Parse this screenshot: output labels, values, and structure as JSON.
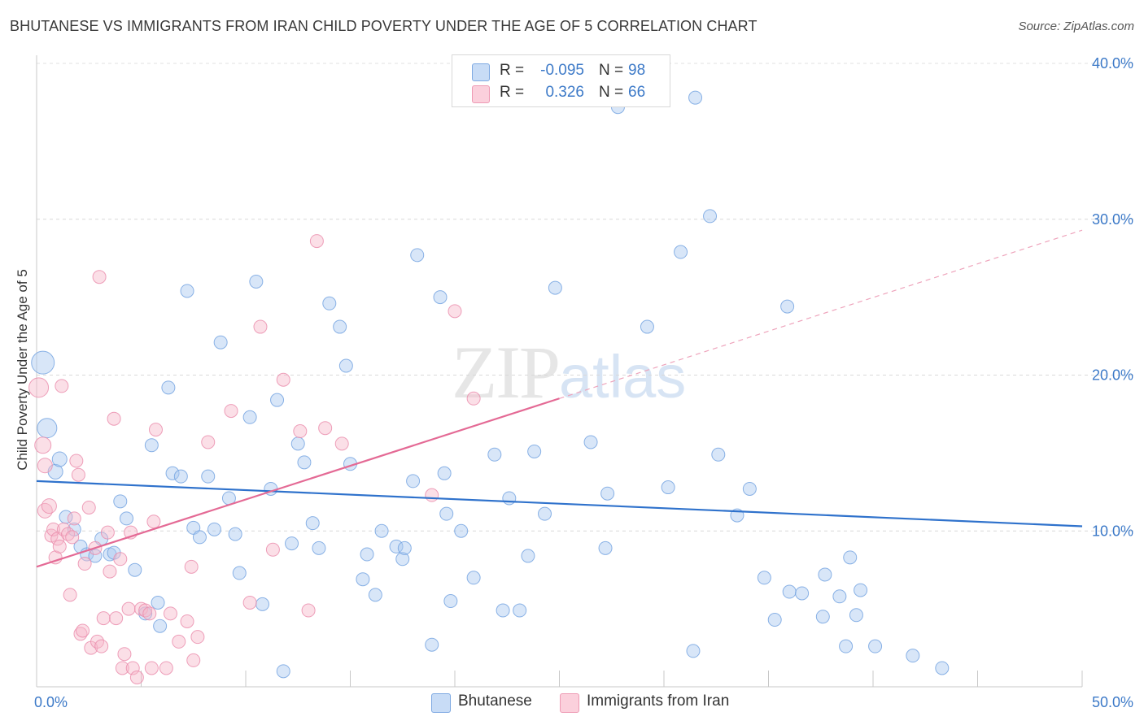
{
  "title": "BHUTANESE VS IMMIGRANTS FROM IRAN CHILD POVERTY UNDER THE AGE OF 5 CORRELATION CHART",
  "source": "Source: ZipAtlas.com",
  "watermark": {
    "zip": "ZIP",
    "atlas": "atlas"
  },
  "legend": {
    "rows": [
      {
        "r_label": "R =",
        "r_value": "-0.095",
        "n_label": "N =",
        "n_value": "98",
        "color": "#a9c8f0"
      },
      {
        "r_label": "R =",
        "r_value": "0.326",
        "n_label": "N =",
        "n_value": "66",
        "color": "#f6b7c9"
      }
    ]
  },
  "bottom_legend": [
    {
      "label": "Bhutanese",
      "color": "#a9c8f0"
    },
    {
      "label": "Immigrants from Iran",
      "color": "#f6b7c9"
    }
  ],
  "chart_data": {
    "type": "scatter",
    "title": "BHUTANESE VS IMMIGRANTS FROM IRAN CHILD POVERTY UNDER THE AGE OF 5 CORRELATION CHART",
    "xlabel": "",
    "ylabel": "Child Poverty Under the Age of 5",
    "xlim": [
      0,
      50
    ],
    "ylim": [
      0,
      40
    ],
    "x_tick_labels": [
      "0.0%",
      "50.0%"
    ],
    "y_ticks": [
      10,
      20,
      30,
      40
    ],
    "y_tick_labels": [
      "10.0%",
      "20.0%",
      "30.0%",
      "40.0%"
    ],
    "grid": true,
    "legend_position": "top-center",
    "series": [
      {
        "name": "Bhutanese",
        "color": "#6fa0e0",
        "fill": "#a9c8f0",
        "trend": {
          "x": [
            0,
            50
          ],
          "y": [
            13.2,
            10.3
          ],
          "style": "solid"
        },
        "points": [
          [
            0.3,
            20.8,
            14
          ],
          [
            0.5,
            16.6,
            12
          ],
          [
            0.9,
            13.8,
            9
          ],
          [
            1.1,
            14.6,
            9
          ],
          [
            1.4,
            10.9,
            8
          ],
          [
            1.8,
            10.1,
            8
          ],
          [
            2.1,
            9.0,
            8
          ],
          [
            2.4,
            8.5,
            8
          ],
          [
            2.8,
            8.4,
            8
          ],
          [
            3.1,
            9.5,
            8
          ],
          [
            3.5,
            8.5,
            8
          ],
          [
            3.7,
            8.6,
            8
          ],
          [
            4.0,
            11.9,
            8
          ],
          [
            4.3,
            10.8,
            8
          ],
          [
            4.7,
            7.5,
            8
          ],
          [
            5.2,
            4.7,
            8
          ],
          [
            5.5,
            15.5,
            8
          ],
          [
            5.8,
            5.4,
            8
          ],
          [
            5.9,
            3.9,
            8
          ],
          [
            6.3,
            19.2,
            8
          ],
          [
            6.5,
            13.7,
            8
          ],
          [
            6.9,
            13.5,
            8
          ],
          [
            7.2,
            25.4,
            8
          ],
          [
            7.5,
            10.2,
            8
          ],
          [
            7.8,
            9.6,
            8
          ],
          [
            8.2,
            13.5,
            8
          ],
          [
            8.5,
            10.1,
            8
          ],
          [
            8.8,
            22.1,
            8
          ],
          [
            9.2,
            12.1,
            8
          ],
          [
            9.5,
            9.8,
            8
          ],
          [
            9.7,
            7.3,
            8
          ],
          [
            10.2,
            17.3,
            8
          ],
          [
            10.5,
            26.0,
            8
          ],
          [
            10.8,
            5.3,
            8
          ],
          [
            11.2,
            12.7,
            8
          ],
          [
            11.5,
            18.4,
            8
          ],
          [
            11.8,
            1.0,
            8
          ],
          [
            12.2,
            9.2,
            8
          ],
          [
            12.5,
            15.6,
            8
          ],
          [
            12.8,
            14.4,
            8
          ],
          [
            13.2,
            10.5,
            8
          ],
          [
            13.5,
            8.9,
            8
          ],
          [
            14.0,
            24.6,
            8
          ],
          [
            14.5,
            23.1,
            8
          ],
          [
            14.8,
            20.6,
            8
          ],
          [
            15.0,
            14.3,
            8
          ],
          [
            15.6,
            6.9,
            8
          ],
          [
            15.8,
            8.5,
            8
          ],
          [
            16.2,
            5.9,
            8
          ],
          [
            16.5,
            10.0,
            8
          ],
          [
            17.2,
            9.0,
            8
          ],
          [
            17.5,
            8.2,
            8
          ],
          [
            17.6,
            8.9,
            8
          ],
          [
            18.0,
            13.2,
            8
          ],
          [
            18.2,
            27.7,
            8
          ],
          [
            18.9,
            2.7,
            8
          ],
          [
            19.3,
            25.0,
            8
          ],
          [
            19.5,
            13.7,
            8
          ],
          [
            19.6,
            11.1,
            8
          ],
          [
            19.8,
            5.5,
            8
          ],
          [
            20.3,
            10.0,
            8
          ],
          [
            20.9,
            7.0,
            8
          ],
          [
            21.9,
            14.9,
            8
          ],
          [
            22.3,
            4.9,
            8
          ],
          [
            22.6,
            12.1,
            8
          ],
          [
            23.1,
            4.9,
            8
          ],
          [
            23.5,
            8.4,
            8
          ],
          [
            23.8,
            15.1,
            8
          ],
          [
            24.3,
            11.1,
            8
          ],
          [
            24.8,
            25.6,
            8
          ],
          [
            26.5,
            15.7,
            8
          ],
          [
            27.2,
            8.9,
            8
          ],
          [
            27.3,
            12.4,
            8
          ],
          [
            27.8,
            37.2,
            8
          ],
          [
            29.2,
            23.1,
            8
          ],
          [
            30.2,
            12.8,
            8
          ],
          [
            30.8,
            27.9,
            8
          ],
          [
            31.4,
            2.3,
            8
          ],
          [
            31.5,
            37.8,
            8
          ],
          [
            32.2,
            30.2,
            8
          ],
          [
            32.6,
            14.9,
            8
          ],
          [
            33.5,
            11.0,
            8
          ],
          [
            34.1,
            12.7,
            8
          ],
          [
            34.8,
            7.0,
            8
          ],
          [
            35.3,
            4.3,
            8
          ],
          [
            35.9,
            24.4,
            8
          ],
          [
            36.0,
            6.1,
            8
          ],
          [
            36.6,
            6.0,
            8
          ],
          [
            37.6,
            4.5,
            8
          ],
          [
            37.7,
            7.2,
            8
          ],
          [
            38.4,
            5.8,
            8
          ],
          [
            38.7,
            2.6,
            8
          ],
          [
            38.9,
            8.3,
            8
          ],
          [
            39.2,
            4.6,
            8
          ],
          [
            39.4,
            6.2,
            8
          ],
          [
            40.1,
            2.6,
            8
          ],
          [
            41.9,
            2.0,
            8
          ],
          [
            43.3,
            1.2,
            8
          ]
        ]
      },
      {
        "name": "Immigrants from Iran",
        "color": "#ea8aaa",
        "fill": "#f6b7c9",
        "trend": {
          "x": [
            0,
            25
          ],
          "y": [
            7.7,
            18.5
          ],
          "style": "solid",
          "dashed_to": [
            50,
            29.3
          ]
        },
        "points": [
          [
            0.1,
            19.2,
            12
          ],
          [
            0.3,
            15.5,
            10
          ],
          [
            0.4,
            14.2,
            9
          ],
          [
            0.4,
            11.3,
            9
          ],
          [
            0.6,
            11.6,
            9
          ],
          [
            0.7,
            9.7,
            8
          ],
          [
            0.8,
            10.1,
            8
          ],
          [
            0.9,
            8.3,
            8
          ],
          [
            1.0,
            9.5,
            8
          ],
          [
            1.1,
            9.0,
            8
          ],
          [
            1.2,
            19.3,
            8
          ],
          [
            1.3,
            10.1,
            8
          ],
          [
            1.5,
            9.8,
            8
          ],
          [
            1.6,
            5.9,
            8
          ],
          [
            1.7,
            9.6,
            8
          ],
          [
            1.8,
            10.8,
            8
          ],
          [
            1.9,
            14.5,
            8
          ],
          [
            2.0,
            13.6,
            8
          ],
          [
            2.1,
            3.4,
            8
          ],
          [
            2.2,
            3.6,
            8
          ],
          [
            2.3,
            7.9,
            8
          ],
          [
            2.5,
            11.5,
            8
          ],
          [
            2.6,
            2.5,
            8
          ],
          [
            2.8,
            8.9,
            8
          ],
          [
            2.9,
            2.9,
            8
          ],
          [
            3.0,
            26.3,
            8
          ],
          [
            3.1,
            2.6,
            8
          ],
          [
            3.2,
            4.4,
            8
          ],
          [
            3.4,
            9.9,
            8
          ],
          [
            3.5,
            7.4,
            8
          ],
          [
            3.7,
            17.2,
            8
          ],
          [
            3.8,
            4.4,
            8
          ],
          [
            4.0,
            8.2,
            8
          ],
          [
            4.1,
            1.2,
            8
          ],
          [
            4.2,
            2.1,
            8
          ],
          [
            4.4,
            5.0,
            8
          ],
          [
            4.5,
            9.9,
            8
          ],
          [
            4.6,
            1.2,
            8
          ],
          [
            4.8,
            0.6,
            8
          ],
          [
            5.0,
            5.0,
            8
          ],
          [
            5.2,
            4.9,
            8
          ],
          [
            5.4,
            4.7,
            8
          ],
          [
            5.5,
            1.2,
            8
          ],
          [
            5.6,
            10.6,
            8
          ],
          [
            5.7,
            16.5,
            8
          ],
          [
            6.2,
            1.2,
            8
          ],
          [
            6.4,
            4.7,
            8
          ],
          [
            6.8,
            2.9,
            8
          ],
          [
            7.2,
            4.2,
            8
          ],
          [
            7.4,
            7.7,
            8
          ],
          [
            7.5,
            1.7,
            8
          ],
          [
            7.7,
            3.2,
            8
          ],
          [
            8.2,
            15.7,
            8
          ],
          [
            9.3,
            17.7,
            8
          ],
          [
            10.2,
            5.4,
            8
          ],
          [
            10.7,
            23.1,
            8
          ],
          [
            11.3,
            8.8,
            8
          ],
          [
            11.8,
            19.7,
            8
          ],
          [
            12.6,
            16.4,
            8
          ],
          [
            13.0,
            4.9,
            8
          ],
          [
            13.4,
            28.6,
            8
          ],
          [
            13.8,
            16.6,
            8
          ],
          [
            14.6,
            15.6,
            8
          ],
          [
            18.9,
            12.3,
            8
          ],
          [
            20.0,
            24.1,
            8
          ],
          [
            20.9,
            18.5,
            8
          ]
        ]
      }
    ]
  }
}
